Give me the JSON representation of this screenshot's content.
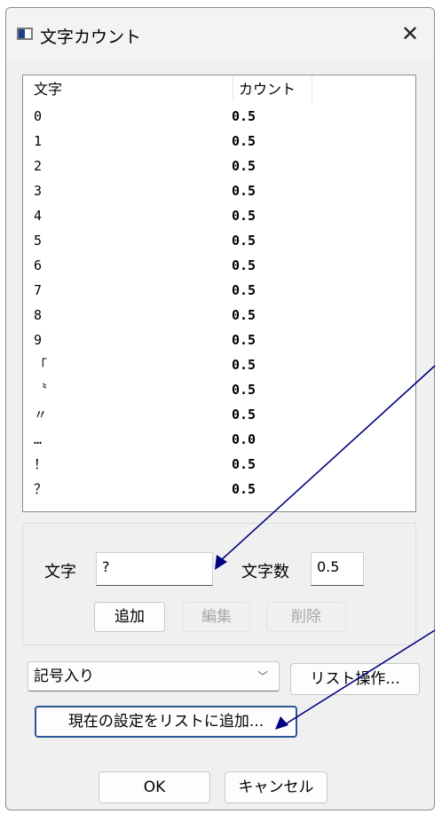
{
  "window": {
    "title": "文字カウント",
    "close_glyph": "✕"
  },
  "list": {
    "columns": [
      "文字",
      "カウント"
    ],
    "rows": [
      {
        "char": "0",
        "count": "0.5"
      },
      {
        "char": "1",
        "count": "0.5"
      },
      {
        "char": "2",
        "count": "0.5"
      },
      {
        "char": "3",
        "count": "0.5"
      },
      {
        "char": "4",
        "count": "0.5"
      },
      {
        "char": "5",
        "count": "0.5"
      },
      {
        "char": "6",
        "count": "0.5"
      },
      {
        "char": "7",
        "count": "0.5"
      },
      {
        "char": "8",
        "count": "0.5"
      },
      {
        "char": "9",
        "count": "0.5"
      },
      {
        "char": "「",
        "count": "0.5"
      },
      {
        "char": "〝",
        "count": "0.5"
      },
      {
        "char": "〃",
        "count": "0.5"
      },
      {
        "char": "…",
        "count": "0.0"
      },
      {
        "char": "！",
        "count": "0.5"
      },
      {
        "char": "？",
        "count": "0.5"
      }
    ]
  },
  "editor": {
    "char_label": "文字",
    "char_value": "?",
    "count_label": "文字数",
    "count_value": "0.5",
    "add_label": "追加",
    "edit_label": "編集",
    "delete_label": "削除"
  },
  "preset": {
    "selected": "記号入り",
    "list_ops_label": "リスト操作...",
    "add_current_label": "現在の設定をリストに追加..."
  },
  "footer": {
    "ok_label": "OK",
    "cancel_label": "キャンセル"
  },
  "colors": {
    "annotation_arrow": "#000080",
    "focus_border": "#2b5797"
  }
}
